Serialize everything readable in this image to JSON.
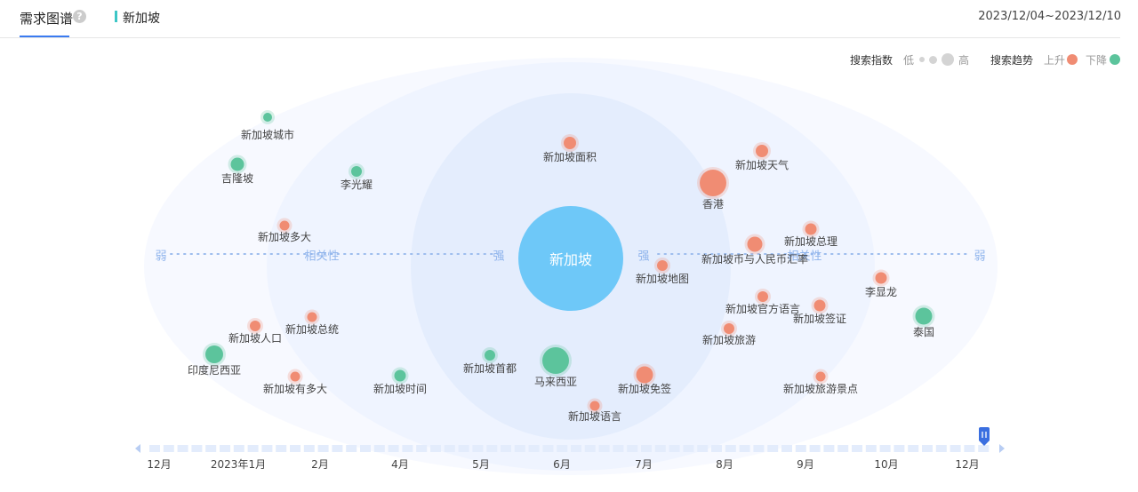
{
  "header": {
    "tab_title": "需求图谱",
    "help_icon": "question-icon",
    "keyword": "新加坡",
    "date_range": "2023/12/04~2023/12/10"
  },
  "legend": {
    "index_label": "搜索指数",
    "low": "低",
    "high": "高",
    "trend_label": "搜索趋势",
    "up": "上升",
    "down": "下降",
    "up_color": "#f08c73",
    "down_color": "#5cc49c"
  },
  "graph": {
    "center": "新加坡",
    "weak": "弱",
    "strong": "强",
    "relevance": "相关性",
    "terms": [
      {
        "label": "新加坡城市",
        "trend": "down"
      },
      {
        "label": "吉隆坡",
        "trend": "down"
      },
      {
        "label": "李光耀",
        "trend": "down"
      },
      {
        "label": "新加坡面积",
        "trend": "up"
      },
      {
        "label": "新加坡天气",
        "trend": "up"
      },
      {
        "label": "香港",
        "trend": "up"
      },
      {
        "label": "新加坡多大",
        "trend": "up"
      },
      {
        "label": "新加坡总理",
        "trend": "up"
      },
      {
        "label": "新加坡币与人民币汇率",
        "trend": "up"
      },
      {
        "label": "新加坡地图",
        "trend": "up"
      },
      {
        "label": "李显龙",
        "trend": "up"
      },
      {
        "label": "新加坡官方语言",
        "trend": "up"
      },
      {
        "label": "新加坡签证",
        "trend": "up"
      },
      {
        "label": "泰国",
        "trend": "down"
      },
      {
        "label": "新加坡人口",
        "trend": "up"
      },
      {
        "label": "新加坡总统",
        "trend": "up"
      },
      {
        "label": "新加坡旅游",
        "trend": "up"
      },
      {
        "label": "印度尼西亚",
        "trend": "down"
      },
      {
        "label": "新加坡首都",
        "trend": "down"
      },
      {
        "label": "马来西亚",
        "trend": "down"
      },
      {
        "label": "新加坡免签",
        "trend": "up"
      },
      {
        "label": "新加坡有多大",
        "trend": "up"
      },
      {
        "label": "新加坡时间",
        "trend": "down"
      },
      {
        "label": "新加坡旅游景点",
        "trend": "up"
      },
      {
        "label": "新加坡语言",
        "trend": "up"
      }
    ]
  },
  "timeline": {
    "ticks": [
      "12月",
      "2023年1月",
      "2月",
      "4月",
      "5月",
      "6月",
      "7月",
      "8月",
      "9月",
      "10月",
      "12月"
    ]
  }
}
